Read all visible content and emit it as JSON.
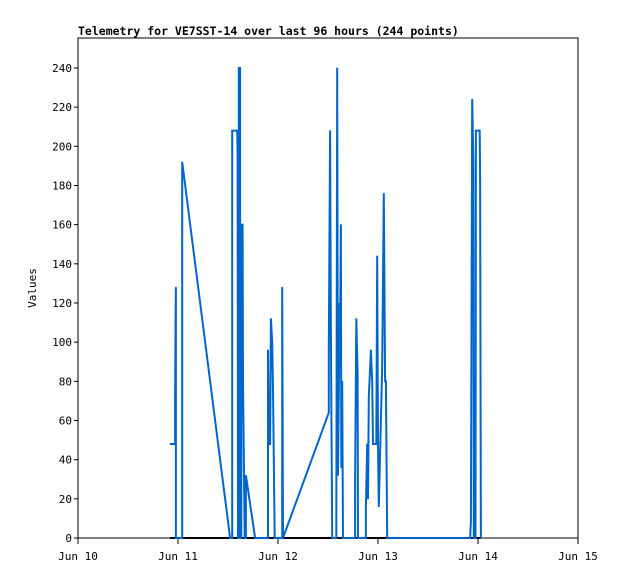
{
  "chart_data": {
    "type": "line",
    "title": "Telemetry for VE7SST-14 over last 96 hours (244 points)",
    "xlabel": "",
    "ylabel": "Values",
    "x_units": "hours since Jun 10 00:00",
    "xlim": [
      0,
      120
    ],
    "ylim": [
      0,
      255.3
    ],
    "grid": false,
    "line_color": "#0066cc",
    "baseline_color": "#000000",
    "x_ticks": [
      {
        "value": 0,
        "label": "Jun 10"
      },
      {
        "value": 24,
        "label": "Jun 11"
      },
      {
        "value": 48,
        "label": "Jun 12"
      },
      {
        "value": 72,
        "label": "Jun 13"
      },
      {
        "value": 96,
        "label": "Jun 14"
      },
      {
        "value": 120,
        "label": "Jun 15"
      }
    ],
    "y_ticks": [
      0,
      20,
      40,
      60,
      80,
      100,
      120,
      140,
      160,
      180,
      200,
      220,
      240
    ],
    "series": [
      {
        "name": "Values",
        "points": [
          [
            22.1,
            48
          ],
          [
            23.3,
            48
          ],
          [
            23.3,
            68
          ],
          [
            23.4,
            108
          ],
          [
            23.5,
            128
          ],
          [
            23.5,
            0
          ],
          [
            25.0,
            0
          ],
          [
            25.0,
            192
          ],
          [
            36.5,
            0
          ],
          [
            37.0,
            0
          ],
          [
            37.0,
            208
          ],
          [
            38.2,
            208
          ],
          [
            38.3,
            196
          ],
          [
            38.4,
            0
          ],
          [
            38.6,
            0
          ],
          [
            38.6,
            240
          ],
          [
            38.9,
            240
          ],
          [
            38.9,
            0
          ],
          [
            39.2,
            0
          ],
          [
            39.2,
            160
          ],
          [
            39.5,
            160
          ],
          [
            39.6,
            80
          ],
          [
            40.0,
            0
          ],
          [
            40.3,
            0
          ],
          [
            40.3,
            32
          ],
          [
            42.5,
            0
          ],
          [
            45.6,
            0
          ],
          [
            45.6,
            96
          ],
          [
            45.8,
            48
          ],
          [
            46.1,
            48
          ],
          [
            46.3,
            112
          ],
          [
            46.6,
            100
          ],
          [
            46.8,
            76
          ],
          [
            47.2,
            0
          ],
          [
            49.0,
            0
          ],
          [
            49.0,
            128
          ],
          [
            49.2,
            0
          ],
          [
            60.2,
            64
          ],
          [
            60.2,
            96
          ],
          [
            60.5,
            208
          ],
          [
            60.7,
            104
          ],
          [
            61.0,
            0
          ],
          [
            62.0,
            0
          ],
          [
            62.2,
            240
          ],
          [
            62.4,
            32
          ],
          [
            62.8,
            120
          ],
          [
            62.9,
            104
          ],
          [
            63.1,
            160
          ],
          [
            63.2,
            36
          ],
          [
            63.4,
            80
          ],
          [
            63.6,
            0
          ],
          [
            66.5,
            0
          ],
          [
            66.5,
            28
          ],
          [
            66.8,
            112
          ],
          [
            67.1,
            84
          ],
          [
            67.2,
            0
          ],
          [
            69.1,
            0
          ],
          [
            69.1,
            16
          ],
          [
            69.4,
            48
          ],
          [
            69.6,
            20
          ],
          [
            69.8,
            72
          ],
          [
            70.3,
            96
          ],
          [
            70.6,
            80
          ],
          [
            70.8,
            48
          ],
          [
            71.6,
            48
          ],
          [
            71.8,
            144
          ],
          [
            72.0,
            48
          ],
          [
            72.2,
            16
          ],
          [
            73.0,
            88
          ],
          [
            73.4,
            176
          ],
          [
            73.7,
            80
          ],
          [
            73.9,
            80
          ],
          [
            74.2,
            0
          ],
          [
            94.1,
            0
          ],
          [
            94.3,
            8
          ],
          [
            94.6,
            224
          ],
          [
            94.9,
            192
          ],
          [
            95.0,
            0
          ],
          [
            95.4,
            0
          ],
          [
            95.5,
            208
          ],
          [
            96.4,
            208
          ],
          [
            96.5,
            184
          ],
          [
            96.7,
            0
          ]
        ]
      }
    ]
  }
}
